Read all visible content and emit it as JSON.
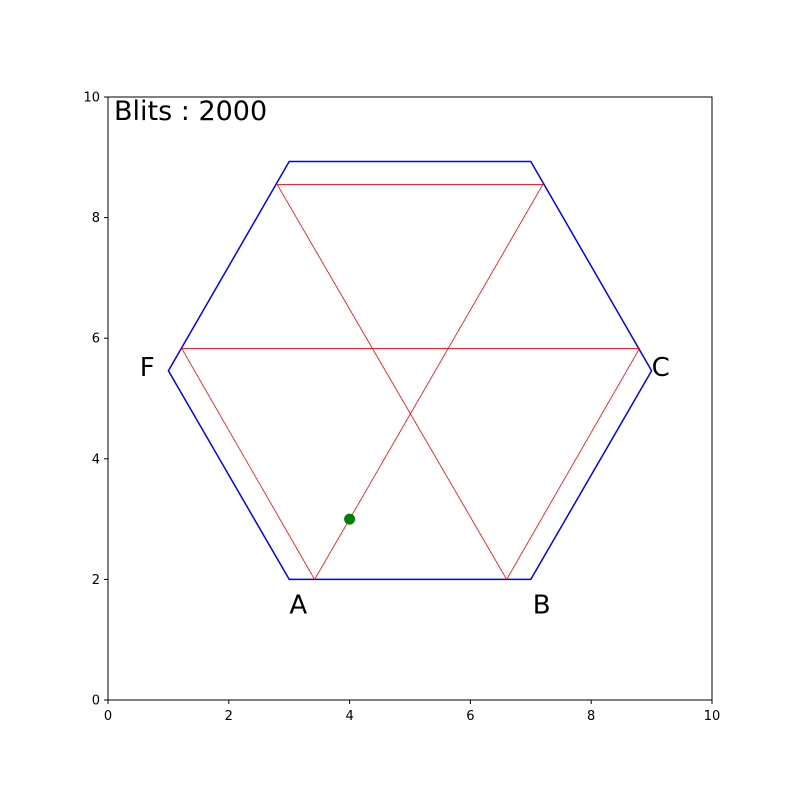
{
  "chart_data": {
    "type": "line",
    "xlim": [
      0,
      10
    ],
    "ylim": [
      0,
      10
    ],
    "x_ticks": [
      "0",
      "2",
      "4",
      "6",
      "8",
      "10"
    ],
    "y_ticks": [
      "0",
      "2",
      "4",
      "6",
      "8",
      "10"
    ],
    "grid": false,
    "annotation": "Blits : 2000",
    "hexagon": {
      "color": "#0000ff",
      "vertices": [
        [
          3,
          2
        ],
        [
          7,
          2
        ],
        [
          9,
          5.46
        ],
        [
          7,
          8.93
        ],
        [
          3,
          8.93
        ],
        [
          1,
          5.46
        ]
      ]
    },
    "vertex_labels": [
      {
        "text": "A",
        "x": 3.15,
        "y": 1.58
      },
      {
        "text": "B",
        "x": 7.18,
        "y": 1.58
      },
      {
        "text": "C",
        "x": 9.15,
        "y": 5.52
      },
      {
        "text": "F",
        "x": 0.65,
        "y": 5.52
      }
    ],
    "path": {
      "color": "#ff0000",
      "points": [
        [
          4.0,
          3.0
        ],
        [
          7.2,
          8.55
        ],
        [
          2.8,
          8.55
        ],
        [
          6.6,
          2.0
        ],
        [
          8.8,
          5.83
        ],
        [
          1.22,
          5.83
        ],
        [
          3.42,
          2.0
        ],
        [
          4.0,
          3.0
        ]
      ]
    },
    "marker": {
      "x": 4.0,
      "y": 3.0,
      "color": "#008000"
    }
  }
}
